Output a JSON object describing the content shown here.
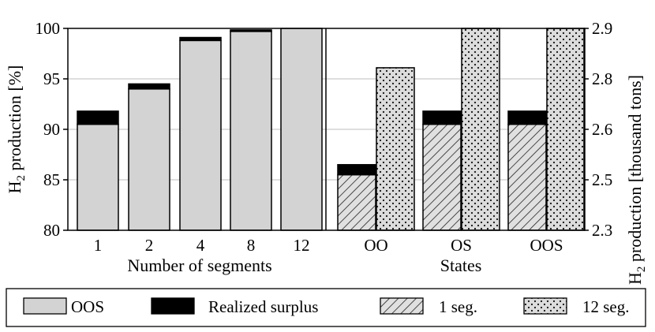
{
  "chart_data": {
    "type": "bar",
    "left_axis": {
      "label_main": "H",
      "label_sub": "2",
      "label_rest": " production [%]",
      "ylim": [
        80,
        100
      ],
      "ticks": [
        80,
        85,
        90,
        95,
        100
      ]
    },
    "right_axis": {
      "label_main": "H",
      "label_sub": "2",
      "label_rest": " production [thousand tons]",
      "ticks": [
        "2.3",
        "2.5",
        "2.6",
        "2.8",
        "2.9"
      ]
    },
    "grid": true,
    "legend_position": "bottom",
    "panels": [
      {
        "xlabel": "Number of segments",
        "categories": [
          "1",
          "2",
          "4",
          "8",
          "12"
        ],
        "bars": [
          {
            "base": 90.5,
            "surplus": 1.3,
            "pattern": "oos"
          },
          {
            "base": 94.0,
            "surplus": 0.5,
            "pattern": "oos"
          },
          {
            "base": 98.8,
            "surplus": 0.3,
            "pattern": "oos"
          },
          {
            "base": 99.7,
            "surplus": 0.15,
            "pattern": "oos"
          },
          {
            "base": 100.0,
            "surplus": 0,
            "pattern": "oos"
          }
        ]
      },
      {
        "xlabel": "States",
        "categories": [
          "OO",
          "OS",
          "OOS"
        ],
        "groups": [
          {
            "seg1_base": 85.5,
            "seg1_surplus": 1.0,
            "seg12": 96.1
          },
          {
            "seg1_base": 90.5,
            "seg1_surplus": 1.3,
            "seg12": 100.0
          },
          {
            "seg1_base": 90.5,
            "seg1_surplus": 1.3,
            "seg12": 100.0
          }
        ]
      }
    ],
    "legend": [
      {
        "label": "OOS",
        "pattern": "oos"
      },
      {
        "label": "Realized surplus",
        "pattern": "surplus"
      },
      {
        "label": "1 seg.",
        "pattern": "hatch"
      },
      {
        "label": "12 seg.",
        "pattern": "dots"
      }
    ],
    "colors": {
      "oos": "#d3d3d3",
      "surplus": "#000000",
      "hatch_bg": "#e0e0e0",
      "dots_bg": "#dcdcdc",
      "grid": "#bdbdbd"
    }
  }
}
